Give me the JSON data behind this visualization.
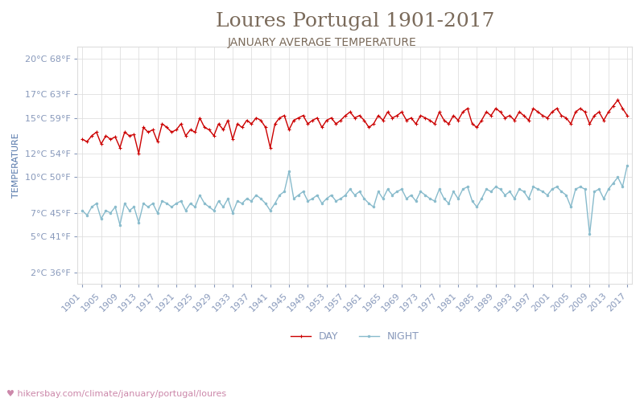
{
  "title": "Loures Portugal 1901-2017",
  "subtitle": "JANUARY AVERAGE TEMPERATURE",
  "ylabel": "TEMPERATURE",
  "xlabel_url": "hikersbay.com/climate/january/portugal/loures",
  "years": [
    1901,
    1902,
    1903,
    1904,
    1905,
    1906,
    1907,
    1908,
    1909,
    1910,
    1911,
    1912,
    1913,
    1914,
    1915,
    1916,
    1917,
    1918,
    1919,
    1920,
    1921,
    1922,
    1923,
    1924,
    1925,
    1926,
    1927,
    1928,
    1929,
    1930,
    1931,
    1932,
    1933,
    1934,
    1935,
    1936,
    1937,
    1938,
    1939,
    1940,
    1941,
    1942,
    1943,
    1944,
    1945,
    1946,
    1947,
    1948,
    1949,
    1950,
    1951,
    1952,
    1953,
    1954,
    1955,
    1956,
    1957,
    1958,
    1959,
    1960,
    1961,
    1962,
    1963,
    1964,
    1965,
    1966,
    1967,
    1968,
    1969,
    1970,
    1971,
    1972,
    1973,
    1974,
    1975,
    1976,
    1977,
    1978,
    1979,
    1980,
    1981,
    1982,
    1983,
    1984,
    1985,
    1986,
    1987,
    1988,
    1989,
    1990,
    1991,
    1992,
    1993,
    1994,
    1995,
    1996,
    1997,
    1998,
    1999,
    2000,
    2001,
    2002,
    2003,
    2004,
    2005,
    2006,
    2007,
    2008,
    2009,
    2010,
    2011,
    2012,
    2013,
    2014,
    2015,
    2016,
    2017
  ],
  "day_temps": [
    13.2,
    13.0,
    13.5,
    13.8,
    12.8,
    13.5,
    13.2,
    13.4,
    12.5,
    13.8,
    13.5,
    13.6,
    12.0,
    14.2,
    13.8,
    14.0,
    13.0,
    14.5,
    14.2,
    13.8,
    14.0,
    14.5,
    13.5,
    14.0,
    13.8,
    15.0,
    14.2,
    14.0,
    13.5,
    14.5,
    14.0,
    14.8,
    13.2,
    14.5,
    14.2,
    14.8,
    14.5,
    15.0,
    14.8,
    14.2,
    12.5,
    14.5,
    15.0,
    15.2,
    14.0,
    14.8,
    15.0,
    15.2,
    14.5,
    14.8,
    15.0,
    14.2,
    14.8,
    15.0,
    14.5,
    14.8,
    15.2,
    15.5,
    15.0,
    15.2,
    14.8,
    14.2,
    14.5,
    15.2,
    14.8,
    15.5,
    15.0,
    15.2,
    15.5,
    14.8,
    15.0,
    14.5,
    15.2,
    15.0,
    14.8,
    14.5,
    15.5,
    14.8,
    14.5,
    15.2,
    14.8,
    15.5,
    15.8,
    14.5,
    14.2,
    14.8,
    15.5,
    15.2,
    15.8,
    15.5,
    15.0,
    15.2,
    14.8,
    15.5,
    15.2,
    14.8,
    15.8,
    15.5,
    15.2,
    15.0,
    15.5,
    15.8,
    15.2,
    15.0,
    14.5,
    15.5,
    15.8,
    15.5,
    14.5,
    15.2,
    15.5,
    14.8,
    15.5,
    16.0,
    16.5,
    15.8,
    15.2
  ],
  "night_temps": [
    7.2,
    6.8,
    7.5,
    7.8,
    6.5,
    7.2,
    7.0,
    7.5,
    6.0,
    7.8,
    7.2,
    7.5,
    6.2,
    7.8,
    7.5,
    7.8,
    7.0,
    8.0,
    7.8,
    7.5,
    7.8,
    8.0,
    7.2,
    7.8,
    7.5,
    8.5,
    7.8,
    7.5,
    7.2,
    8.0,
    7.5,
    8.2,
    7.0,
    8.0,
    7.8,
    8.2,
    8.0,
    8.5,
    8.2,
    7.8,
    7.2,
    7.8,
    8.5,
    8.8,
    10.5,
    8.2,
    8.5,
    8.8,
    8.0,
    8.2,
    8.5,
    7.8,
    8.2,
    8.5,
    8.0,
    8.2,
    8.5,
    9.0,
    8.5,
    8.8,
    8.2,
    7.8,
    7.5,
    8.8,
    8.2,
    9.0,
    8.5,
    8.8,
    9.0,
    8.2,
    8.5,
    8.0,
    8.8,
    8.5,
    8.2,
    8.0,
    9.0,
    8.2,
    7.8,
    8.8,
    8.2,
    9.0,
    9.2,
    8.0,
    7.5,
    8.2,
    9.0,
    8.8,
    9.2,
    9.0,
    8.5,
    8.8,
    8.2,
    9.0,
    8.8,
    8.2,
    9.2,
    9.0,
    8.8,
    8.5,
    9.0,
    9.2,
    8.8,
    8.5,
    7.5,
    9.0,
    9.2,
    9.0,
    5.2,
    8.8,
    9.0,
    8.2,
    9.0,
    9.5,
    10.0,
    9.2,
    11.0
  ],
  "day_color": "#cc0000",
  "night_color": "#88bbcc",
  "title_color": "#7a6a5a",
  "subtitle_color": "#7a6a5a",
  "ylabel_color": "#5577aa",
  "tick_color": "#8899bb",
  "grid_color": "#dddddd",
  "url_color": "#cc88aa",
  "background_color": "#ffffff",
  "yticks_c": [
    2,
    5,
    7,
    10,
    12,
    15,
    17,
    20
  ],
  "yticks_f": [
    36,
    41,
    45,
    50,
    54,
    59,
    63,
    68
  ],
  "ymin": 1,
  "ymax": 21,
  "xtick_years": [
    1901,
    1905,
    1909,
    1913,
    1917,
    1921,
    1925,
    1929,
    1933,
    1937,
    1941,
    1945,
    1949,
    1953,
    1957,
    1961,
    1965,
    1969,
    1973,
    1977,
    1981,
    1985,
    1989,
    1993,
    1997,
    2001,
    2005,
    2009,
    2013,
    2017
  ],
  "legend_night_label": "NIGHT",
  "legend_day_label": "DAY",
  "title_fontsize": 18,
  "subtitle_fontsize": 10,
  "tick_fontsize": 8,
  "ylabel_fontsize": 8,
  "url_fontsize": 8
}
